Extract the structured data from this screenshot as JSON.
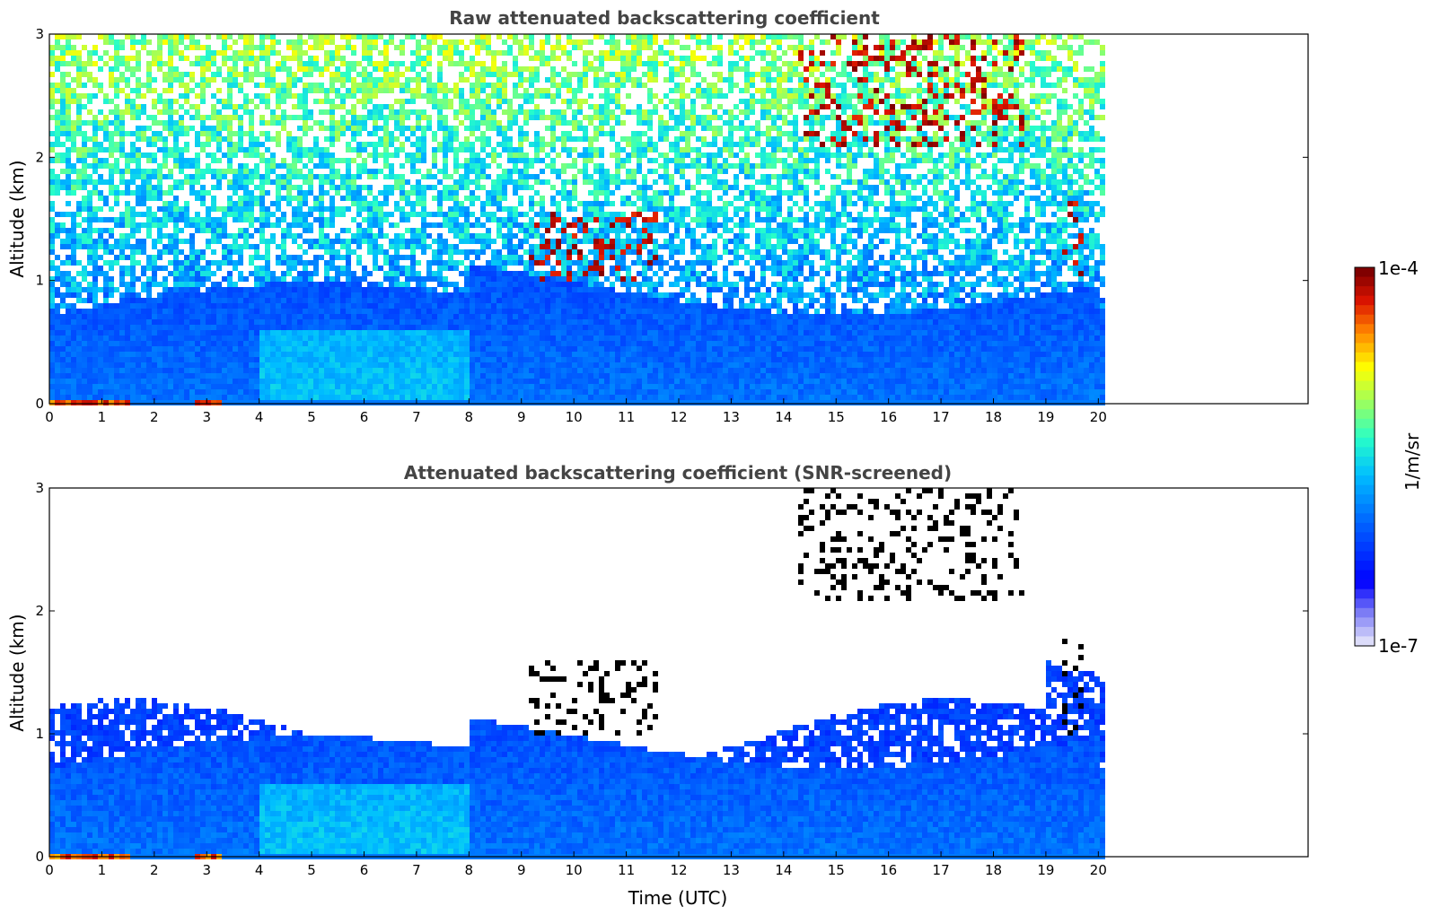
{
  "chart_data": [
    {
      "type": "heatmap",
      "title": "Raw attenuated backscattering coefficient",
      "xlabel": "",
      "ylabel": "Altitude (km)",
      "xlim": [
        0,
        24
      ],
      "ylim": [
        0,
        3
      ],
      "x_ticks": [
        "0",
        "1",
        "2",
        "3",
        "4",
        "5",
        "6",
        "7",
        "8",
        "9",
        "10",
        "11",
        "12",
        "13",
        "14",
        "15",
        "16",
        "17",
        "18",
        "19",
        "20"
      ],
      "y_ticks": [
        "0",
        "1",
        "2",
        "3"
      ],
      "data_end_x": 20.1,
      "colorscale": "jet",
      "features": {
        "aerosol_layer_top_km": 0.8,
        "cloud_segments": [
          {
            "x": [
              9.1,
              11.6
            ],
            "alt": [
              1.0,
              1.6
            ]
          },
          {
            "x": [
              14.2,
              18.5
            ],
            "alt": [
              2.1,
              3.0
            ]
          },
          {
            "x": [
              19.3,
              19.7
            ],
            "alt": [
              1.0,
              1.8
            ]
          }
        ]
      }
    },
    {
      "type": "heatmap",
      "title": "Attenuated backscattering coefficient (SNR-screened)",
      "xlabel": "Time (UTC)",
      "ylabel": "Altitude (km)",
      "xlim": [
        0,
        24
      ],
      "ylim": [
        0,
        3
      ],
      "x_ticks": [
        "0",
        "1",
        "2",
        "3",
        "4",
        "5",
        "6",
        "7",
        "8",
        "9",
        "10",
        "11",
        "12",
        "13",
        "14",
        "15",
        "16",
        "17",
        "18",
        "19",
        "20"
      ],
      "y_ticks": [
        "0",
        "1",
        "2",
        "3"
      ],
      "data_end_x": 20.1,
      "colorscale": "jet",
      "screened": true
    }
  ],
  "colorbar": {
    "label": "1/m/sr",
    "max_label": "1e-4",
    "min_label": "1e-7",
    "colors": [
      "#e6e6fa",
      "#b4b4f0",
      "#8080ff",
      "#0000ff",
      "#0050ff",
      "#00a0ff",
      "#00e0ff",
      "#40ffc0",
      "#a0ff60",
      "#ffff00",
      "#ffa000",
      "#ff3000",
      "#c80000",
      "#800000"
    ]
  }
}
